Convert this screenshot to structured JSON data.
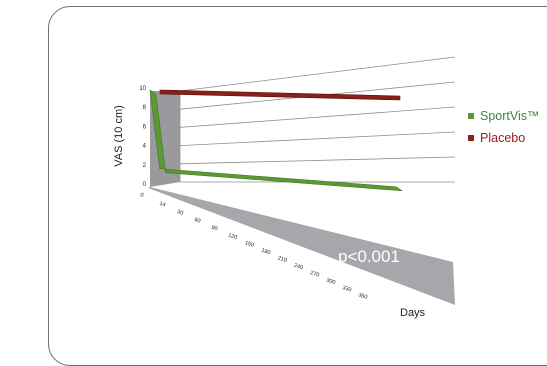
{
  "chart_data": {
    "type": "line",
    "ylabel": "VAS (10 cm)",
    "xlabel": "Days",
    "annotation": "p<0.001",
    "y_ticks": [
      "0",
      "2",
      "4",
      "6",
      "8",
      "10"
    ],
    "x_ticks": [
      "0",
      "14",
      "30",
      "60",
      "90",
      "120",
      "150",
      "180",
      "210",
      "240",
      "270",
      "300",
      "330",
      "360"
    ],
    "ylim": [
      0,
      10
    ],
    "x": [
      0,
      14,
      360
    ],
    "series": [
      {
        "name": "SportVis™",
        "color": "#5a9a35",
        "label_color": "#3a8a36",
        "values": [
          10,
          1.5,
          1.0
        ]
      },
      {
        "name": "Placebo",
        "color": "#8a2016",
        "label_color": "#a01c1c",
        "values": [
          10,
          10,
          10
        ]
      }
    ],
    "grid": true,
    "legend_position": "right"
  }
}
